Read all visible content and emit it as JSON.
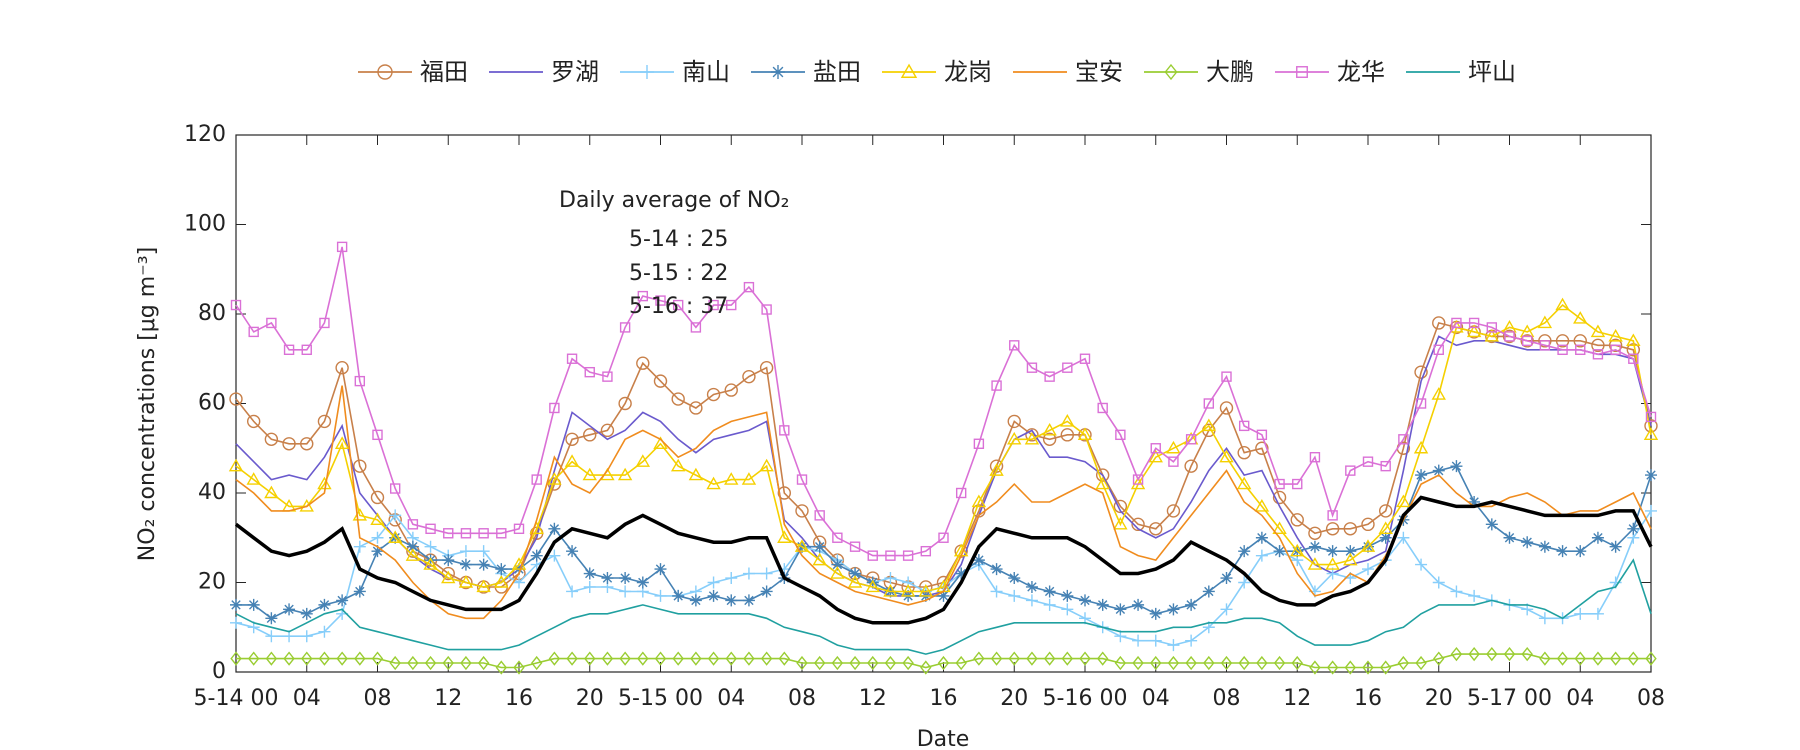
{
  "chart_data": {
    "type": "line",
    "x_label": "Date",
    "y_label": "NO₂ concentrations [μg m⁻³]",
    "annotations": [
      "Daily average of NO₂",
      "5-14 : 25",
      "5-15 : 22",
      "5-16 : 37"
    ],
    "x": [
      0,
      1,
      2,
      3,
      4,
      5,
      6,
      7,
      8,
      9,
      10,
      11,
      12,
      13,
      14,
      15,
      16,
      17,
      18,
      19,
      20,
      21,
      22,
      23,
      24,
      25,
      26,
      27,
      28,
      29,
      30,
      31,
      32,
      33,
      34,
      35,
      36,
      37,
      38,
      39,
      40,
      41,
      42,
      43,
      44,
      45,
      46,
      47,
      48,
      49,
      50,
      51,
      52,
      53,
      54,
      55,
      56,
      57,
      58,
      59,
      60,
      61,
      62,
      63,
      64,
      65,
      66,
      67,
      68,
      69,
      70,
      71,
      72,
      73,
      74,
      75,
      76,
      77,
      78,
      79,
      80
    ],
    "xlim": [
      0,
      80
    ],
    "xticks": [
      {
        "value": 0,
        "label": "5-14 00"
      },
      {
        "value": 4,
        "label": "04"
      },
      {
        "value": 8,
        "label": "08"
      },
      {
        "value": 12,
        "label": "12"
      },
      {
        "value": 16,
        "label": "16"
      },
      {
        "value": 20,
        "label": "20"
      },
      {
        "value": 24,
        "label": "5-15 00"
      },
      {
        "value": 28,
        "label": "04"
      },
      {
        "value": 32,
        "label": "08"
      },
      {
        "value": 36,
        "label": "12"
      },
      {
        "value": 40,
        "label": "16"
      },
      {
        "value": 44,
        "label": "20"
      },
      {
        "value": 48,
        "label": "5-16 00"
      },
      {
        "value": 52,
        "label": "04"
      },
      {
        "value": 56,
        "label": "08"
      },
      {
        "value": 60,
        "label": "12"
      },
      {
        "value": 64,
        "label": "16"
      },
      {
        "value": 68,
        "label": "20"
      },
      {
        "value": 72,
        "label": "5-17 00"
      },
      {
        "value": 76,
        "label": "04"
      },
      {
        "value": 80,
        "label": "08"
      }
    ],
    "ylim": [
      0,
      120
    ],
    "yticks": [
      0,
      20,
      40,
      60,
      80,
      100,
      120
    ],
    "legend": "top",
    "series": [
      {
        "name": "福田",
        "color": "#c8804a",
        "marker": "circle",
        "values": [
          61,
          56,
          52,
          51,
          51,
          56,
          68,
          46,
          39,
          34,
          27,
          25,
          22,
          20,
          19,
          19,
          22,
          31,
          42,
          52,
          53,
          54,
          60,
          69,
          65,
          61,
          59,
          62,
          63,
          66,
          68,
          40,
          36,
          29,
          25,
          22,
          21,
          20,
          19,
          19,
          20,
          27,
          36,
          46,
          56,
          53,
          52,
          53,
          53,
          44,
          37,
          33,
          32,
          36,
          46,
          54,
          59,
          49,
          50,
          39,
          34,
          31,
          32,
          32,
          33,
          36,
          50,
          67,
          78,
          77,
          76,
          75,
          75,
          74,
          74,
          74,
          74,
          73,
          73,
          72,
          55
        ]
      },
      {
        "name": "罗湖",
        "color": "#6a5acd",
        "marker": "none",
        "values": [
          51,
          47,
          43,
          44,
          43,
          48,
          55,
          40,
          35,
          30,
          26,
          23,
          21,
          20,
          19,
          20,
          23,
          30,
          45,
          58,
          55,
          52,
          54,
          58,
          56,
          52,
          49,
          52,
          53,
          54,
          56,
          34,
          30,
          25,
          22,
          20,
          19,
          17,
          17,
          17,
          18,
          24,
          35,
          45,
          52,
          54,
          48,
          48,
          47,
          44,
          36,
          32,
          30,
          32,
          38,
          45,
          50,
          44,
          45,
          37,
          30,
          24,
          22,
          24,
          25,
          27,
          45,
          65,
          75,
          73,
          74,
          74,
          73,
          72,
          72,
          72,
          72,
          71,
          71,
          70,
          55
        ]
      },
      {
        "name": "南山",
        "color": "#87cefa",
        "marker": "plus",
        "values": [
          11,
          10,
          8,
          8,
          8,
          9,
          13,
          28,
          30,
          35,
          30,
          28,
          26,
          27,
          27,
          22,
          20,
          24,
          26,
          18,
          19,
          19,
          18,
          18,
          17,
          17,
          18,
          20,
          21,
          22,
          22,
          23,
          28,
          27,
          25,
          22,
          20,
          21,
          20,
          18,
          19,
          22,
          24,
          18,
          17,
          16,
          15,
          14,
          12,
          10,
          8,
          7,
          7,
          6,
          7,
          10,
          14,
          20,
          26,
          27,
          25,
          18,
          22,
          21,
          23,
          25,
          30,
          24,
          20,
          18,
          17,
          16,
          15,
          14,
          12,
          12,
          13,
          13,
          20,
          30,
          36
        ]
      },
      {
        "name": "盐田",
        "color": "#4682b4",
        "marker": "asterisk",
        "values": [
          15,
          15,
          12,
          14,
          13,
          15,
          16,
          18,
          27,
          30,
          28,
          25,
          25,
          24,
          24,
          23,
          23,
          26,
          32,
          27,
          22,
          21,
          21,
          20,
          23,
          17,
          16,
          17,
          16,
          16,
          18,
          21,
          28,
          28,
          24,
          22,
          20,
          18,
          17,
          17,
          17,
          22,
          25,
          23,
          21,
          19,
          18,
          17,
          16,
          15,
          14,
          15,
          13,
          14,
          15,
          18,
          21,
          27,
          30,
          27,
          27,
          28,
          27,
          27,
          28,
          30,
          34,
          44,
          45,
          46,
          38,
          33,
          30,
          29,
          28,
          27,
          27,
          30,
          28,
          32,
          44
        ]
      },
      {
        "name": "龙岗",
        "color": "#f5d000",
        "marker": "triangle",
        "values": [
          46,
          43,
          40,
          37,
          37,
          42,
          51,
          35,
          34,
          30,
          26,
          24,
          21,
          20,
          19,
          20,
          24,
          32,
          43,
          47,
          44,
          44,
          44,
          47,
          51,
          46,
          44,
          42,
          43,
          43,
          46,
          30,
          28,
          25,
          22,
          20,
          19,
          18,
          18,
          18,
          19,
          27,
          38,
          45,
          52,
          52,
          54,
          56,
          53,
          42,
          33,
          42,
          48,
          50,
          52,
          55,
          48,
          42,
          37,
          32,
          27,
          24,
          24,
          25,
          28,
          32,
          38,
          50,
          62,
          77,
          76,
          75,
          77,
          76,
          78,
          82,
          79,
          76,
          75,
          74,
          53
        ]
      },
      {
        "name": "宝安",
        "color": "#f08c1e",
        "marker": "none",
        "values": [
          43,
          40,
          36,
          36,
          37,
          40,
          64,
          30,
          28,
          25,
          20,
          16,
          13,
          12,
          12,
          16,
          22,
          34,
          48,
          42,
          40,
          45,
          52,
          54,
          52,
          48,
          50,
          54,
          56,
          57,
          58,
          33,
          26,
          22,
          20,
          18,
          17,
          16,
          15,
          16,
          18,
          26,
          35,
          38,
          42,
          38,
          38,
          40,
          42,
          40,
          28,
          26,
          25,
          30,
          35,
          40,
          45,
          38,
          35,
          30,
          22,
          17,
          18,
          22,
          20,
          26,
          34,
          42,
          44,
          40,
          37,
          37,
          39,
          40,
          38,
          35,
          36,
          36,
          38,
          40,
          32
        ]
      },
      {
        "name": "大鹏",
        "color": "#9acd32",
        "marker": "diamond",
        "values": [
          3,
          3,
          3,
          3,
          3,
          3,
          3,
          3,
          3,
          2,
          2,
          2,
          2,
          2,
          2,
          1,
          1,
          2,
          3,
          3,
          3,
          3,
          3,
          3,
          3,
          3,
          3,
          3,
          3,
          3,
          3,
          3,
          2,
          2,
          2,
          2,
          2,
          2,
          2,
          1,
          2,
          2,
          3,
          3,
          3,
          3,
          3,
          3,
          3,
          3,
          2,
          2,
          2,
          2,
          2,
          2,
          2,
          2,
          2,
          2,
          2,
          1,
          1,
          1,
          1,
          1,
          2,
          2,
          3,
          4,
          4,
          4,
          4,
          4,
          3,
          3,
          3,
          3,
          3,
          3,
          3
        ]
      },
      {
        "name": "龙华",
        "color": "#da70d6",
        "marker": "square",
        "values": [
          82,
          76,
          78,
          72,
          72,
          78,
          95,
          65,
          53,
          41,
          33,
          32,
          31,
          31,
          31,
          31,
          32,
          43,
          59,
          70,
          67,
          66,
          77,
          84,
          83,
          82,
          77,
          82,
          82,
          86,
          81,
          54,
          43,
          35,
          30,
          28,
          26,
          26,
          26,
          27,
          30,
          40,
          51,
          64,
          73,
          68,
          66,
          68,
          70,
          59,
          53,
          43,
          50,
          47,
          52,
          60,
          66,
          55,
          53,
          42,
          42,
          48,
          35,
          45,
          47,
          46,
          52,
          60,
          72,
          78,
          78,
          77,
          75,
          74,
          73,
          72,
          72,
          71,
          72,
          70,
          57
        ]
      },
      {
        "name": "坪山",
        "color": "#20a0a0",
        "marker": "none",
        "values": [
          13,
          11,
          10,
          9,
          11,
          13,
          14,
          10,
          9,
          8,
          7,
          6,
          5,
          5,
          5,
          5,
          6,
          8,
          10,
          12,
          13,
          13,
          14,
          15,
          14,
          13,
          13,
          13,
          13,
          13,
          12,
          10,
          9,
          8,
          6,
          5,
          5,
          5,
          5,
          4,
          5,
          7,
          9,
          10,
          11,
          11,
          11,
          11,
          11,
          10,
          9,
          9,
          9,
          10,
          10,
          11,
          11,
          12,
          12,
          11,
          8,
          6,
          6,
          6,
          7,
          9,
          10,
          13,
          15,
          15,
          15,
          16,
          15,
          15,
          14,
          12,
          15,
          18,
          19,
          25,
          13
        ]
      }
    ],
    "average_line": {
      "color": "#000000",
      "values": [
        33,
        30,
        27,
        26,
        27,
        29,
        32,
        23,
        21,
        20,
        18,
        16,
        15,
        14,
        14,
        14,
        16,
        22,
        29,
        32,
        31,
        30,
        33,
        35,
        33,
        31,
        30,
        29,
        29,
        30,
        30,
        21,
        19,
        17,
        14,
        12,
        11,
        11,
        11,
        12,
        14,
        20,
        28,
        32,
        31,
        30,
        30,
        30,
        28,
        25,
        22,
        22,
        23,
        25,
        29,
        27,
        25,
        22,
        18,
        16,
        15,
        15,
        17,
        18,
        20,
        25,
        35,
        39,
        38,
        37,
        37,
        38,
        37,
        36,
        35,
        35,
        35,
        35,
        36,
        36,
        28
      ]
    }
  }
}
